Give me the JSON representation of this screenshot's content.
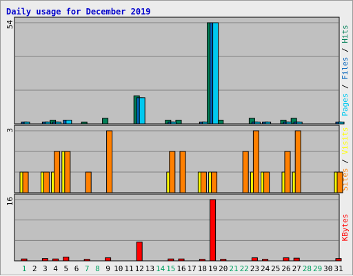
{
  "chart_data": {
    "type": "bar",
    "title": "Daily usage for December 2019",
    "days": [
      1,
      2,
      3,
      4,
      5,
      6,
      7,
      8,
      9,
      10,
      11,
      12,
      13,
      14,
      15,
      16,
      17,
      18,
      19,
      20,
      21,
      22,
      23,
      24,
      25,
      26,
      27,
      28,
      29,
      30,
      31
    ],
    "weekend_days": [
      1,
      7,
      8,
      14,
      15,
      21,
      22,
      28,
      29
    ],
    "panels": [
      {
        "id": "pages-files-hits",
        "ymax": 54,
        "ymax_label": "54",
        "side_label": [
          {
            "text": "Pages",
            "color": "#00c8ef"
          },
          {
            "text": " / ",
            "color": "#000000"
          },
          {
            "text": "Files",
            "color": "#0062ba"
          },
          {
            "text": " / ",
            "color": "#000000"
          },
          {
            "text": "Hits",
            "color": "#007f57"
          }
        ],
        "series": [
          {
            "name": "Hits",
            "color": "#007f57",
            "values": [
              0,
              0,
              0,
              2,
              0,
              0,
              1,
              0,
              3,
              0,
              0,
              15,
              0,
              0,
              2,
              2,
              0,
              0,
              54,
              2,
              0,
              0,
              3,
              0,
              0,
              2,
              3,
              0,
              0,
              0,
              0
            ]
          },
          {
            "name": "Files",
            "color": "#0062ba",
            "values": [
              1,
              0,
              1,
              1,
              2,
              0,
              0,
              0,
              0,
              0,
              0,
              14,
              0,
              0,
              1,
              0,
              0,
              1,
              54,
              0,
              0,
              0,
              1,
              1,
              0,
              1,
              1,
              0,
              0,
              0,
              1
            ]
          },
          {
            "name": "Pages",
            "color": "#00c8ef",
            "values": [
              1,
              0,
              1,
              1,
              2,
              0,
              0,
              0,
              0,
              0,
              0,
              14,
              0,
              0,
              1,
              0,
              0,
              1,
              54,
              0,
              0,
              0,
              1,
              1,
              0,
              1,
              1,
              0,
              0,
              0,
              1
            ]
          }
        ]
      },
      {
        "id": "visits-sites",
        "ymax": 3,
        "ymax_label": "3",
        "side_label": [
          {
            "text": "Sites",
            "color": "#ff8000"
          },
          {
            "text": " / ",
            "color": "#000000"
          },
          {
            "text": "Visits",
            "color": "#ffff00"
          }
        ],
        "series": [
          {
            "name": "Visits",
            "color": "#ffff00",
            "values": [
              1,
              0,
              1,
              1,
              2,
              0,
              0,
              0,
              0,
              0,
              0,
              0,
              0,
              0,
              1,
              0,
              0,
              1,
              1,
              0,
              0,
              0,
              1,
              1,
              0,
              1,
              1,
              0,
              0,
              0,
              1
            ]
          },
          {
            "name": "Sites",
            "color": "#ff8000",
            "values": [
              1,
              0,
              1,
              2,
              2,
              0,
              1,
              0,
              3,
              0,
              0,
              0,
              0,
              0,
              2,
              2,
              0,
              1,
              1,
              0,
              0,
              2,
              3,
              1,
              0,
              2,
              3,
              0,
              0,
              0,
              1
            ]
          }
        ]
      },
      {
        "id": "kbytes",
        "ymax": 16,
        "ymax_label": "16",
        "side_label": [
          {
            "text": "KBytes",
            "color": "#ff0000"
          }
        ],
        "series": [
          {
            "name": "KBytes",
            "color": "#ff0000",
            "values": [
              0.5,
              0,
              0.6,
              0.5,
              1.0,
              0,
              0.4,
              0,
              0.8,
              0,
              0,
              4.9,
              0,
              0,
              0.5,
              0.5,
              0,
              0.4,
              16,
              0.4,
              0,
              0,
              0.8,
              0.4,
              0,
              0.8,
              0.7,
              0,
              0,
              0,
              0.6
            ]
          }
        ]
      }
    ]
  }
}
